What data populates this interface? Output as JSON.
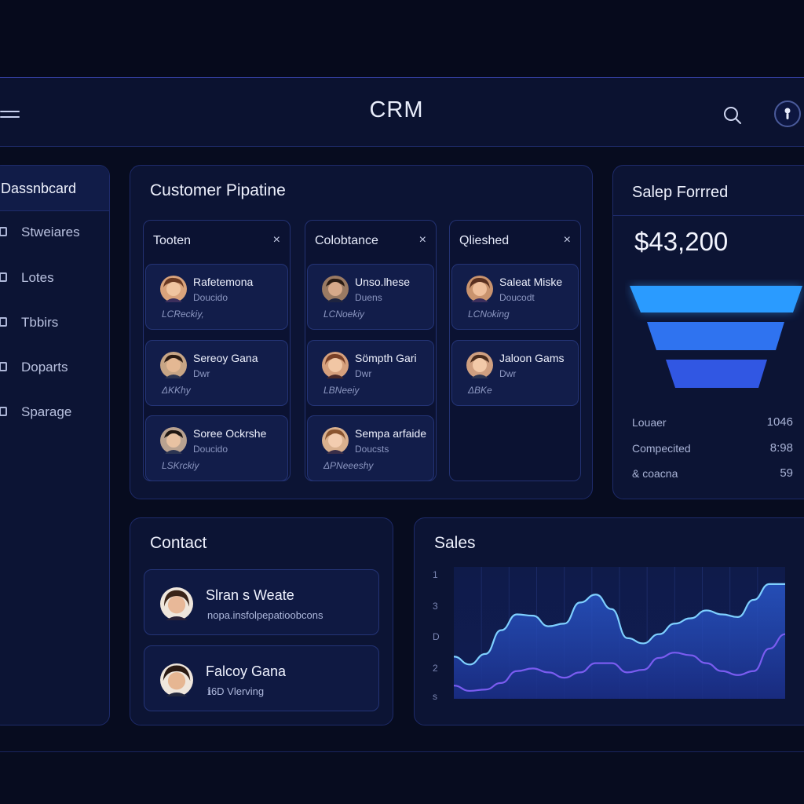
{
  "header": {
    "title": "CRM"
  },
  "colors": {
    "accent": "#3d82f6",
    "line_primary": "#7fd0ff",
    "line_secondary": "#7a5cf0",
    "background": "#070c1f",
    "panel": "#0c1434"
  },
  "icons": {
    "menu": "hamburger-menu-icon",
    "search": "search-icon",
    "profile": "profile-avatar-icon"
  },
  "sidebar": {
    "active": "Dassnbcard",
    "items": [
      {
        "label": "Stweiares"
      },
      {
        "label": "Lotes"
      },
      {
        "label": "Tbbirs"
      },
      {
        "label": "Doparts"
      },
      {
        "label": "Sparage"
      }
    ]
  },
  "pipeline": {
    "title": "Customer Pipatine",
    "columns": [
      {
        "title": "Tooten",
        "cards": [
          {
            "name": "Rafetemona",
            "sub": "Doucido",
            "tag": "LCReckiy,"
          },
          {
            "name": "Sereoy Gana",
            "sub": "Dwr",
            "tag": "ΔΚΚhy"
          },
          {
            "name": "Soree Ockrshe",
            "sub": "Doucido",
            "tag": "LSKrckiy"
          }
        ]
      },
      {
        "title": "Colobtance",
        "cards": [
          {
            "name": "Unso.lhese",
            "sub": "Duens",
            "tag": "LCNoekiy"
          },
          {
            "name": "Sömpth Gari",
            "sub": "Dwr",
            "tag": "LBNeeiy"
          },
          {
            "name": "Sempa arfaide",
            "sub": "Doucsts",
            "tag": "ΔPNeeeshy"
          }
        ]
      },
      {
        "title": "Qlieshed",
        "cards": [
          {
            "name": "Saleat Miske",
            "sub": "Doucodt",
            "tag": "LCNoking"
          },
          {
            "name": "Jaloon Gams",
            "sub": "Dwr",
            "tag": "ΔΒΚe"
          }
        ]
      }
    ]
  },
  "funnel": {
    "title": "Salep Forrred",
    "amount": "$43,200",
    "stages": [
      {
        "label": "Louaer",
        "value": "1046"
      },
      {
        "label": "Compecited",
        "value": "8:98"
      },
      {
        "label": "& coacna",
        "value": "59"
      }
    ]
  },
  "contact": {
    "title": "Contact",
    "items": [
      {
        "name": "Slran s Weate",
        "sub": "nopa.insfolpepatioobcons"
      },
      {
        "name": "Falcoy Gana",
        "sub": "ℹ︎6D Vlerving"
      }
    ]
  },
  "sales": {
    "title": "Sales",
    "yticks": [
      "1",
      "3",
      "D",
      "2",
      "s"
    ]
  },
  "chart_data": {
    "type": "area",
    "title": "Sales",
    "grid": true,
    "ylim": [
      0,
      10
    ],
    "x": [
      0,
      1,
      2,
      3,
      4,
      5,
      6,
      7,
      8,
      9,
      10,
      11,
      12,
      13,
      14,
      15,
      16,
      17,
      18,
      19,
      20,
      21
    ],
    "series": [
      {
        "values": [
          3.2,
          2.6,
          3.4,
          5.2,
          6.4,
          6.3,
          5.5,
          5.7,
          7.3,
          7.9,
          6.8,
          4.6,
          4.2,
          4.9,
          5.7,
          6.1,
          6.7,
          6.4,
          6.2,
          7.5,
          8.7,
          8.7
        ]
      },
      {
        "values": [
          1.0,
          0.6,
          0.7,
          1.2,
          2.1,
          2.3,
          2.0,
          1.6,
          2.0,
          2.7,
          2.7,
          2.0,
          2.2,
          3.1,
          3.5,
          3.3,
          2.7,
          2.1,
          1.8,
          2.1,
          3.8,
          4.9
        ]
      }
    ]
  }
}
